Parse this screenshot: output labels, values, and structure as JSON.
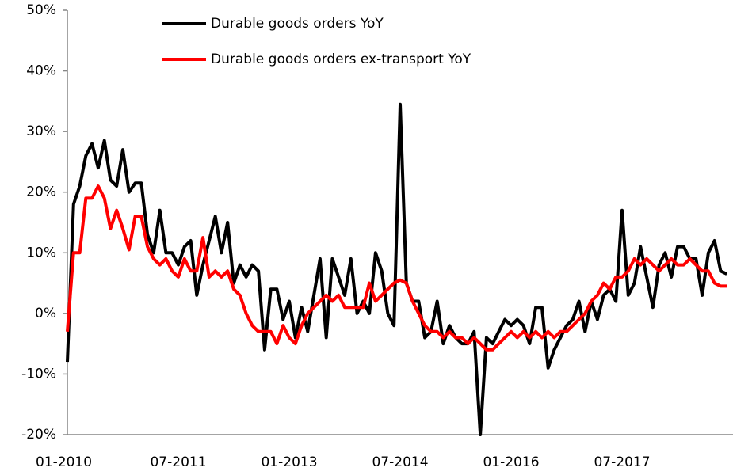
{
  "chart_data": {
    "type": "line",
    "categories": [
      "01-2010",
      null,
      null,
      null,
      null,
      null,
      null,
      null,
      null,
      null,
      null,
      null,
      null,
      null,
      null,
      null,
      null,
      null,
      "07-2011",
      null,
      null,
      null,
      null,
      null,
      null,
      null,
      null,
      null,
      null,
      null,
      null,
      null,
      null,
      null,
      null,
      null,
      "01-2013",
      null,
      null,
      null,
      null,
      null,
      null,
      null,
      null,
      null,
      null,
      null,
      null,
      null,
      null,
      null,
      null,
      null,
      "07-2014",
      null,
      null,
      null,
      null,
      null,
      null,
      null,
      null,
      null,
      null,
      null,
      null,
      null,
      null,
      null,
      null,
      null,
      "01-2016",
      null,
      null,
      null,
      null,
      null,
      null,
      null,
      null,
      null,
      null,
      null,
      null,
      null,
      null,
      null,
      null,
      null,
      "07-2017",
      null,
      null,
      null,
      null,
      null,
      null,
      null,
      null,
      null,
      null,
      null,
      null,
      null,
      null,
      null,
      null,
      null
    ],
    "series": [
      {
        "name": "Durable goods orders YoY",
        "color": "#000000",
        "values": [
          -8,
          18,
          21,
          26,
          28,
          24,
          28.5,
          22,
          21,
          27,
          20,
          21.5,
          21.5,
          13,
          10,
          17,
          10,
          10,
          8,
          11,
          12,
          3,
          8,
          12,
          16,
          10,
          15,
          5,
          8,
          6,
          8,
          7,
          -6,
          4,
          4,
          -1,
          2,
          -4,
          1,
          -3,
          3,
          9,
          -4,
          9,
          6,
          3,
          9,
          0,
          2,
          0,
          10,
          7,
          0,
          -2,
          34.5,
          5,
          2,
          2,
          -4,
          -3,
          2,
          -5,
          -2,
          -4,
          -5,
          -5,
          -3,
          -20,
          -4,
          -5,
          -3,
          -1,
          -2,
          -1,
          -2,
          -5,
          1,
          1,
          -9,
          -6,
          -4,
          -2,
          -1,
          2,
          -3,
          2,
          -1,
          3,
          4,
          2,
          17,
          3,
          5,
          11,
          6,
          1,
          8,
          10,
          6,
          11,
          11,
          9,
          9,
          3,
          10,
          12,
          7,
          6.5
        ]
      },
      {
        "name": "Durable goods orders ex-transport YoY",
        "color": "#ff0000",
        "values": [
          -3,
          10,
          10,
          19,
          19,
          21,
          19,
          14,
          17,
          14,
          10.5,
          16,
          16,
          11,
          9,
          8,
          9,
          7,
          6,
          9,
          7,
          7,
          12.5,
          6,
          7,
          6,
          7,
          4,
          3,
          0,
          -2,
          -3,
          -3,
          -3,
          -5,
          -2,
          -4,
          -5,
          -2,
          0,
          1,
          2,
          3,
          2,
          3,
          1,
          1,
          1,
          1,
          5,
          2,
          3,
          4,
          5,
          5.5,
          5,
          2,
          0,
          -2,
          -3,
          -3,
          -4,
          -3,
          -4,
          -4,
          -5,
          -4,
          -5,
          -6,
          -6,
          -5,
          -4,
          -3,
          -4,
          -3,
          -4,
          -3,
          -4,
          -3,
          -4,
          -3,
          -3,
          -2,
          -1,
          0,
          2,
          3,
          5,
          4,
          6,
          6,
          7,
          9,
          8,
          9,
          8,
          7,
          8,
          9,
          8,
          8,
          9,
          8,
          7,
          7,
          5,
          4.5,
          4.5
        ]
      }
    ],
    "ylim": [
      -20,
      50
    ],
    "yticks": [
      {
        "value": -20,
        "label": "-20%"
      },
      {
        "value": -10,
        "label": "-10%"
      },
      {
        "value": 0,
        "label": "0%"
      },
      {
        "value": 10,
        "label": "10%"
      },
      {
        "value": 20,
        "label": "20%"
      },
      {
        "value": 30,
        "label": "30%"
      },
      {
        "value": 40,
        "label": "40%"
      },
      {
        "value": 50,
        "label": "50%"
      }
    ],
    "grid": false,
    "legend": "top"
  }
}
